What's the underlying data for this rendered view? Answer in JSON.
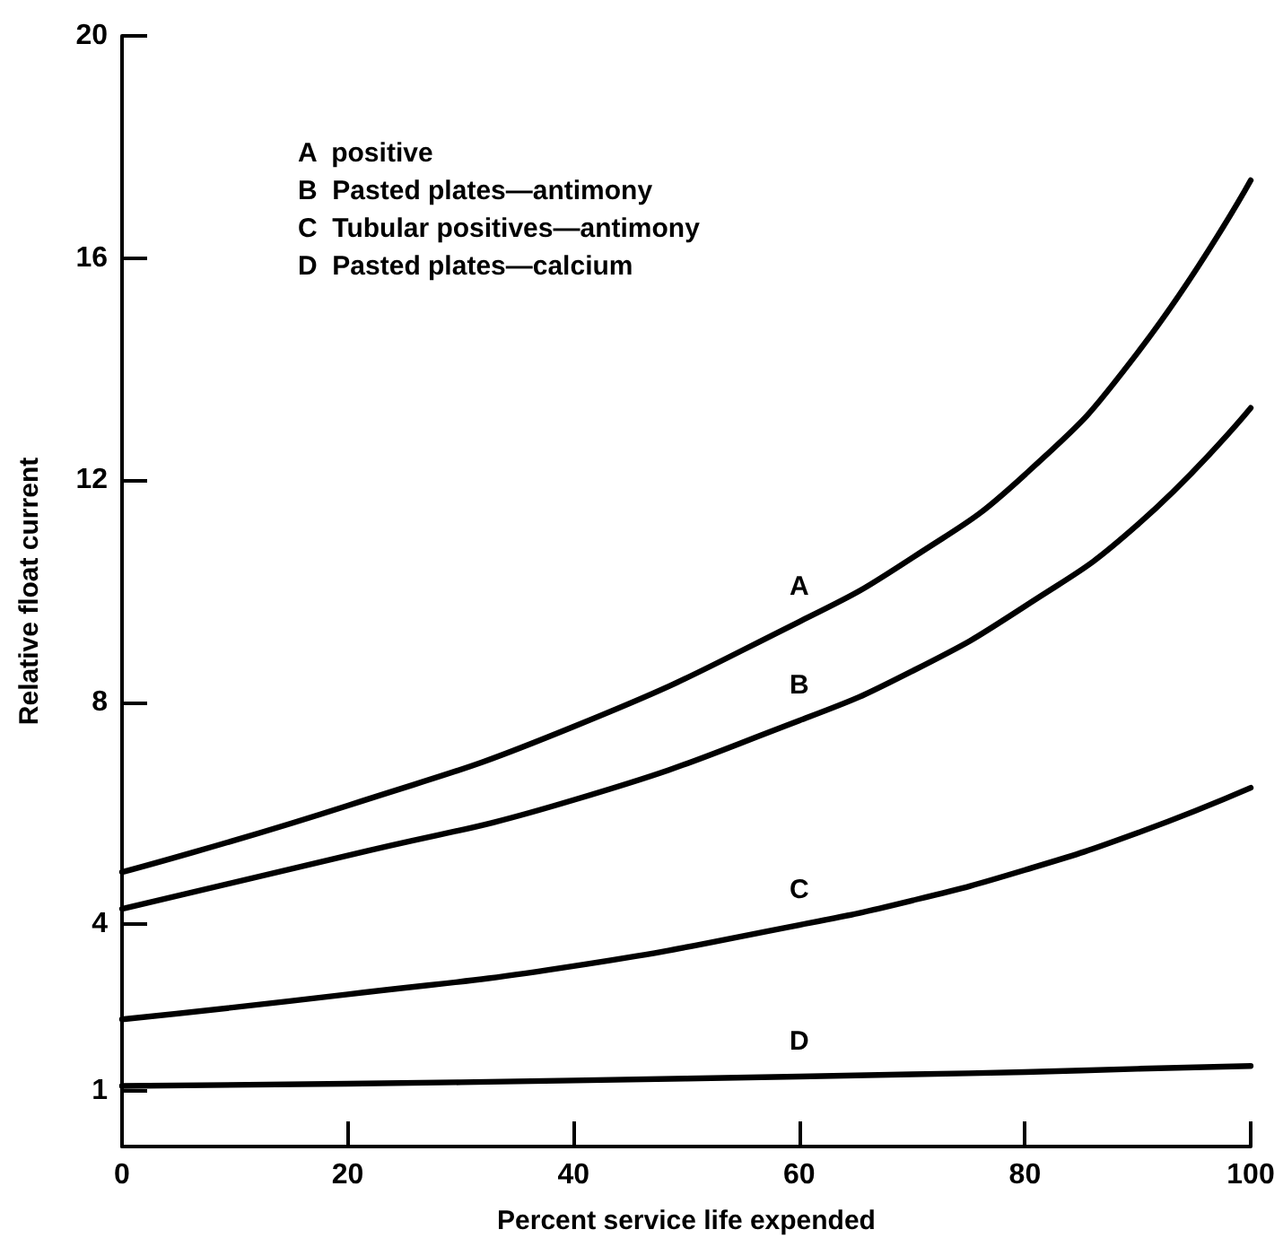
{
  "chart_data": {
    "type": "line",
    "xlabel": "Percent service life expended",
    "ylabel": "Relative float current",
    "x": [
      0,
      20,
      40,
      60,
      70,
      80,
      90,
      100
    ],
    "series": [
      {
        "name": "A",
        "color": "#000000",
        "values": [
          4.94,
          6.14,
          7.56,
          9.45,
          10.6,
          12.1,
          14.3,
          17.4
        ]
      },
      {
        "name": "B",
        "color": "#000000",
        "values": [
          4.28,
          5.24,
          6.24,
          7.67,
          8.56,
          9.73,
          11.2,
          13.3
        ]
      },
      {
        "name": "C",
        "color": "#000000",
        "values": [
          2.29,
          2.74,
          3.25,
          3.99,
          4.43,
          4.98,
          5.65,
          6.46
        ]
      },
      {
        "name": "D",
        "color": "#000000",
        "values": [
          1.09,
          1.13,
          1.19,
          1.26,
          1.3,
          1.34,
          1.4,
          1.45
        ]
      }
    ],
    "xlim": [
      0,
      100
    ],
    "xticks": [
      0,
      20,
      40,
      60,
      80,
      100
    ],
    "ylim": [
      0,
      20
    ],
    "yticks": [
      1,
      4,
      8,
      12,
      16,
      20
    ],
    "grid": false,
    "marker": "none",
    "line_style": "solid",
    "annotations": [
      "A  positive",
      "B  Pasted plates—antimony",
      "C  Tubular positives—antimony",
      "D  Pasted plates—calcium"
    ]
  }
}
